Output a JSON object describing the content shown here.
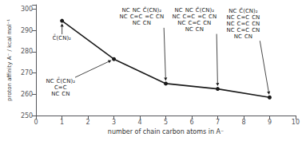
{
  "chart_data": {
    "type": "line",
    "x": [
      1,
      3,
      5,
      7,
      9
    ],
    "values": [
      294.5,
      276.5,
      265.0,
      262.5,
      258.5
    ],
    "color": "#1a1a1a",
    "marker": "circle",
    "xlabel": "number of chain carbon atoms in A⁻",
    "ylabel": "proton affinity A⁻ / kcal mol⁻¹",
    "xlim": [
      0,
      10
    ],
    "ylim": [
      250.0,
      302.0
    ],
    "xticks": [
      0,
      1,
      2,
      3,
      4,
      5,
      6,
      7,
      8,
      9,
      10
    ],
    "yticks": [
      250,
      260,
      270,
      280,
      290,
      300
    ],
    "grid": false,
    "annotations": [
      {
        "x": 1,
        "text": [
          [
            "C̄(CN)₂"
          ]
        ]
      },
      {
        "x": 3,
        "text": [
          [
            "NC",
            "C̄(CN)₂"
          ],
          [
            "C=C"
          ],
          [
            "NC",
            "CN"
          ]
        ]
      },
      {
        "x": 5,
        "text": [
          [
            "NC",
            "NC",
            "C̄(CN)₂"
          ],
          [
            "NC",
            "C=C",
            "=C",
            "CN"
          ],
          [
            "NC",
            "CN"
          ]
        ]
      },
      {
        "x": 7,
        "text": [
          [
            "NC",
            "NC",
            "C̄(CN)₂"
          ],
          [
            "NC",
            "C=C",
            "=C",
            "CN"
          ],
          [
            "NC",
            "C=C",
            "CN"
          ],
          [
            "NC",
            "CN"
          ]
        ]
      },
      {
        "x": 9,
        "text": [
          [
            "NC",
            "C̄(CN)₂"
          ],
          [
            "NC",
            "C=C",
            "CN"
          ],
          [
            "NC",
            "C=C",
            "CN"
          ],
          [
            "NC",
            "C=C",
            "CN"
          ],
          [
            "NC",
            "CN"
          ]
        ]
      }
    ]
  }
}
